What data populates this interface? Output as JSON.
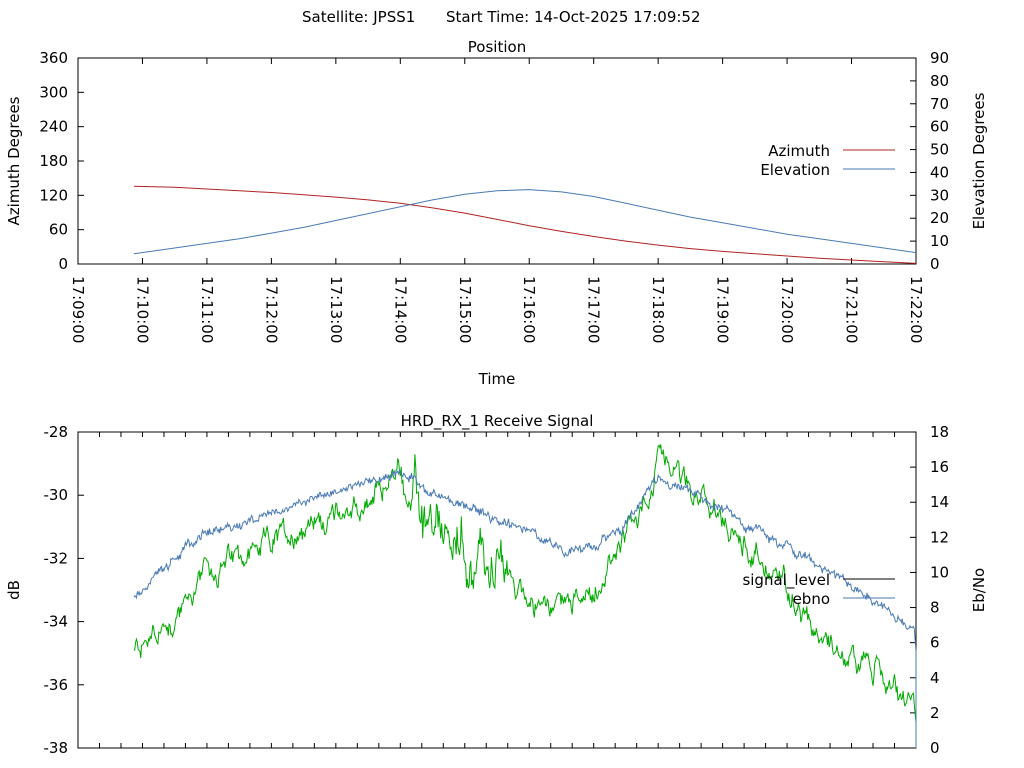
{
  "header": {
    "satellite": "Satellite: JPSS1",
    "start_time": "Start Time: 14-Oct-2025 17:09:52"
  },
  "colors": {
    "azimuth": "#b22222",
    "elevation": "#4a7ab5",
    "signal_level": "#000000",
    "ebno": "#4a7ab5",
    "green_trace": "#00aa00",
    "axes": "#000000"
  },
  "chart_data": [
    {
      "type": "line",
      "title": "Position",
      "xlabel": "Time",
      "ylabel": "Azimuth Degrees",
      "y2label": "Elevation Degrees",
      "xlim": [
        "17:09:00",
        "17:22:00"
      ],
      "ylim": [
        0,
        360
      ],
      "y2lim": [
        0,
        90
      ],
      "xticks": [
        "17:09:00",
        "17:10:00",
        "17:11:00",
        "17:12:00",
        "17:13:00",
        "17:14:00",
        "17:15:00",
        "17:16:00",
        "17:17:00",
        "17:18:00",
        "17:19:00",
        "17:20:00",
        "17:21:00",
        "17:22:00"
      ],
      "yticks": [
        0,
        60,
        120,
        180,
        240,
        300,
        360
      ],
      "y2ticks": [
        0,
        10,
        20,
        30,
        40,
        50,
        60,
        70,
        80,
        90
      ],
      "legend_position": "right",
      "series": [
        {
          "name": "Azimuth",
          "axis": "left",
          "x": [
            "17:09:52",
            "17:10:30",
            "17:11:00",
            "17:11:30",
            "17:12:00",
            "17:12:30",
            "17:13:00",
            "17:13:30",
            "17:14:00",
            "17:14:30",
            "17:15:00",
            "17:15:30",
            "17:16:00",
            "17:16:30",
            "17:17:00",
            "17:17:30",
            "17:18:00",
            "17:18:30",
            "17:19:00",
            "17:19:30",
            "17:20:00",
            "17:20:30",
            "17:21:00",
            "17:21:30",
            "17:22:00"
          ],
          "values": [
            136,
            134,
            131,
            128,
            125,
            121,
            117,
            112,
            106,
            98,
            89,
            78,
            67,
            57,
            48,
            40,
            33,
            27,
            22,
            18,
            14,
            10,
            7,
            4,
            1
          ]
        },
        {
          "name": "Elevation",
          "axis": "right",
          "x": [
            "17:09:52",
            "17:10:30",
            "17:11:00",
            "17:11:30",
            "17:12:00",
            "17:12:30",
            "17:13:00",
            "17:13:30",
            "17:14:00",
            "17:14:30",
            "17:15:00",
            "17:15:30",
            "17:16:00",
            "17:16:30",
            "17:17:00",
            "17:17:30",
            "17:18:00",
            "17:18:30",
            "17:19:00",
            "17:19:30",
            "17:20:00",
            "17:20:30",
            "17:21:00",
            "17:21:30",
            "17:22:00"
          ],
          "values": [
            4.5,
            7,
            9,
            11,
            13.5,
            16,
            19,
            22,
            25,
            28,
            30.5,
            32,
            32.5,
            31.5,
            29.5,
            26.5,
            23.5,
            20.5,
            18,
            15.5,
            13,
            11,
            9,
            7,
            5
          ]
        }
      ]
    },
    {
      "type": "line",
      "title": "HRD_RX_1 Receive Signal",
      "ylabel": "dB",
      "y2label": "Eb/No",
      "xlim": [
        "17:09:00",
        "17:22:00"
      ],
      "ylim": [
        -38,
        -28
      ],
      "y2lim": [
        0,
        18
      ],
      "yticks": [
        -38,
        -36,
        -34,
        -32,
        -30,
        -28
      ],
      "y2ticks": [
        0,
        2,
        4,
        6,
        8,
        10,
        12,
        14,
        16,
        18
      ],
      "legend_position": "right",
      "series": [
        {
          "name": "signal_level",
          "axis": "left",
          "x": [
            "17:09:52",
            "17:10:30",
            "17:11:00",
            "17:11:30",
            "17:12:00",
            "17:12:30",
            "17:13:00",
            "17:13:30",
            "17:14:00",
            "17:14:10",
            "17:14:30",
            "17:15:00",
            "17:15:30",
            "17:16:00",
            "17:16:30",
            "17:17:00",
            "17:17:30",
            "17:18:00",
            "17:18:30",
            "17:19:00",
            "17:19:30",
            "17:20:00",
            "17:20:30",
            "17:21:00",
            "17:21:30",
            "17:22:00"
          ],
          "values": [
            -35.0,
            -33.8,
            -32.5,
            -32.0,
            -31.6,
            -30.9,
            -30.6,
            -30.3,
            -29.3,
            -30.4,
            -31.6,
            -31.8,
            -32.4,
            -33.2,
            -33.5,
            -33.0,
            -31.5,
            -29.0,
            -29.8,
            -31.0,
            -31.8,
            -32.9,
            -34.2,
            -35.1,
            -35.8,
            -37.0
          ]
        },
        {
          "name": "ebno",
          "axis": "right",
          "x": [
            "17:09:52",
            "17:10:30",
            "17:11:00",
            "17:11:30",
            "17:12:00",
            "17:12:30",
            "17:13:00",
            "17:13:30",
            "17:14:00",
            "17:14:30",
            "17:15:00",
            "17:15:30",
            "17:16:00",
            "17:16:30",
            "17:17:00",
            "17:17:30",
            "17:18:00",
            "17:18:30",
            "17:19:00",
            "17:19:30",
            "17:20:00",
            "17:20:30",
            "17:21:00",
            "17:21:30",
            "17:22:00"
          ],
          "values": [
            8.5,
            10.8,
            12.3,
            12.9,
            13.3,
            14.1,
            14.6,
            15.2,
            15.8,
            14.5,
            13.9,
            13.0,
            12.3,
            11.2,
            11.3,
            12.8,
            15.3,
            14.6,
            13.5,
            12.4,
            11.4,
            10.3,
            9.2,
            8.0,
            6.8
          ]
        }
      ]
    }
  ]
}
